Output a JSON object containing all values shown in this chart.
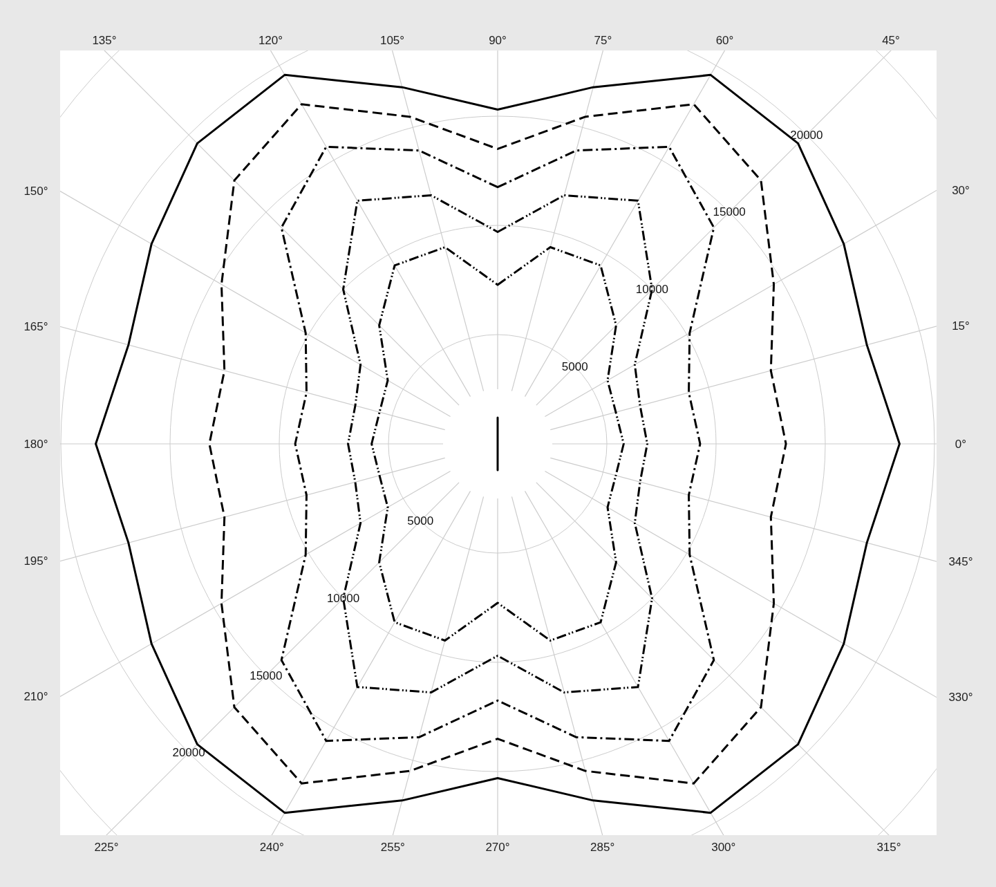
{
  "chart_data": {
    "type": "radar",
    "categories": [
      "90°",
      "75°",
      "60°",
      "45°",
      "30°",
      "15°",
      "0°",
      "345°",
      "330°",
      "315°",
      "300°",
      "285°",
      "270°",
      "255°",
      "240°",
      "225°",
      "210°",
      "195°",
      "180°",
      "165°",
      "150°",
      "135°",
      "120°",
      "105°"
    ],
    "ylim": [
      0,
      25000
    ],
    "yticks": [
      5000,
      10000,
      15000,
      20000
    ],
    "annotations": [
      "5000",
      "10000",
      "15000",
      "20000"
    ],
    "grid": true,
    "series": [
      {
        "color": "#000000",
        "line_style": "solid",
        "values": [
          15300,
          16900,
          19500,
          19450,
          18300,
          17500,
          18400,
          17500,
          18300,
          19450,
          19500,
          16900,
          15300,
          16900,
          19500,
          19450,
          18300,
          17500,
          18400,
          17500,
          18300,
          19450,
          19500,
          16900
        ]
      },
      {
        "color": "#000000",
        "line_style": "dashed",
        "values": [
          13500,
          15500,
          17950,
          17050,
          14600,
          12950,
          13200,
          12950,
          14600,
          17050,
          17950,
          15500,
          13500,
          15500,
          17950,
          17050,
          14600,
          12950,
          13200,
          12950,
          14600,
          17050,
          17950,
          15500
        ]
      },
      {
        "color": "#000000",
        "line_style": "dashdot",
        "values": [
          11750,
          13900,
          15700,
          14000,
          10150,
          9060,
          9270,
          9060,
          10150,
          14000,
          15700,
          13900,
          11750,
          13900,
          15700,
          14000,
          10150,
          9060,
          9270,
          9060,
          10150,
          14000,
          15700,
          13900
        ]
      },
      {
        "color": "#000000",
        "line_style": "dashdotdot",
        "values": [
          9700,
          11780,
          12850,
          10000,
          7250,
          6750,
          6850,
          6750,
          7250,
          10000,
          12850,
          11780,
          9700,
          11780,
          12850,
          10000,
          7250,
          6750,
          6850,
          6750,
          7250,
          10000,
          12850,
          11780
        ]
      },
      {
        "color": "#000000",
        "line_style": "dashdotdot",
        "values": [
          7280,
          9320,
          9430,
          7670,
          5810,
          5600,
          5770,
          5600,
          5810,
          7670,
          9430,
          9320,
          7280,
          9320,
          9430,
          7670,
          5810,
          5600,
          5770,
          5600,
          5810,
          7670,
          9430,
          9320
        ]
      },
      {
        "color": "#000000",
        "line_style": "solid",
        "values": [
          1200,
          0,
          0,
          0,
          0,
          0,
          0,
          0,
          0,
          0,
          0,
          0,
          1200,
          0,
          0,
          0,
          0,
          0,
          0,
          0,
          0,
          0,
          0,
          0
        ]
      }
    ]
  }
}
